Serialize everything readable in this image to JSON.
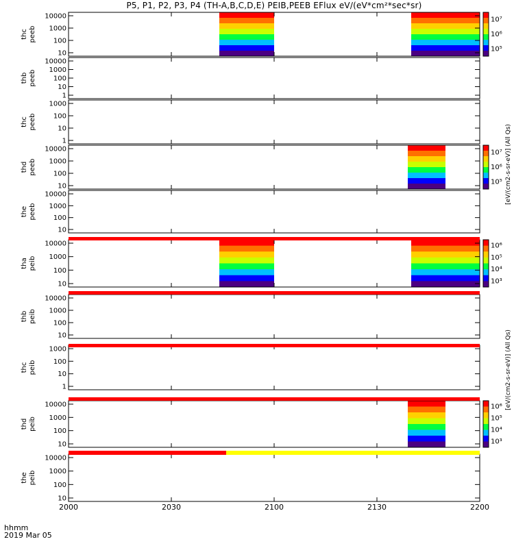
{
  "title": "P5, P1, P2, P3, P4 (TH-A,B,C,D,E) PEIB,PEEB EFlux eV/(eV*cm²*sec*sr)",
  "time_axis": {
    "ticks": [
      "2000",
      "2030",
      "2100",
      "2130",
      "2200"
    ],
    "tick_minutes": [
      0,
      30,
      60,
      90,
      120
    ],
    "range_minutes": [
      0,
      120
    ],
    "label": "hhmm",
    "date": "2019 Mar 05"
  },
  "colorbar_labels": {
    "electron": "[eV/(cm2-s-sr-eV)] (All Qs)",
    "ion": "[eV/(cm2-s-sr-eV)] (All Qs)"
  },
  "colors": {
    "spectrogram_scale": [
      "#4b0082",
      "#0000ff",
      "#00c0ff",
      "#00ff40",
      "#c8ff00",
      "#ffd000",
      "#ff7000",
      "#ff0000"
    ],
    "status_red": "#ff0000",
    "status_yellow": "#ffff00"
  },
  "chart_data": [
    {
      "type": "heatmap",
      "probe": "thc",
      "quantity": "peeb",
      "y_ticks": [
        "10000",
        "1000",
        "100",
        "10"
      ],
      "yscale": "log",
      "colorbar": {
        "ticks": [
          "10⁷",
          "10⁶",
          "10⁵"
        ],
        "scale": "log"
      },
      "data_intervals_minutes": [
        [
          44,
          60
        ],
        [
          100,
          120
        ]
      ]
    },
    {
      "type": "heatmap",
      "probe": "thb",
      "quantity": "peeb",
      "y_ticks": [
        "10000",
        "1000",
        "100",
        "10",
        "1"
      ],
      "yscale": "log",
      "data_intervals_minutes": []
    },
    {
      "type": "heatmap",
      "probe": "thc",
      "quantity": "peeb",
      "y_ticks": [
        "1000",
        "100",
        "10",
        "1"
      ],
      "yscale": "log",
      "data_intervals_minutes": []
    },
    {
      "type": "heatmap",
      "probe": "thd",
      "quantity": "peeb",
      "y_ticks": [
        "10000",
        "1000",
        "100",
        "10"
      ],
      "yscale": "log",
      "colorbar": {
        "ticks": [
          "10⁷",
          "10⁶",
          "10⁵"
        ],
        "scale": "log"
      },
      "data_intervals_minutes": [
        [
          99,
          110
        ]
      ]
    },
    {
      "type": "heatmap",
      "probe": "the",
      "quantity": "peeb",
      "y_ticks": [
        "10000",
        "1000",
        "100",
        "10"
      ],
      "yscale": "log",
      "data_intervals_minutes": []
    },
    {
      "type": "heatmap",
      "probe": "tha",
      "quantity": "peib",
      "y_ticks": [
        "10000",
        "1000",
        "100",
        "10"
      ],
      "yscale": "log",
      "colorbar": {
        "ticks": [
          "10⁶",
          "10⁵",
          "10⁴",
          "10³"
        ],
        "scale": "log"
      },
      "data_intervals_minutes": [
        [
          44,
          60
        ],
        [
          100,
          120
        ]
      ]
    },
    {
      "type": "heatmap",
      "probe": "thb",
      "quantity": "peib",
      "y_ticks": [
        "10000",
        "1000",
        "100",
        "10"
      ],
      "yscale": "log",
      "data_intervals_minutes": []
    },
    {
      "type": "heatmap",
      "probe": "thc",
      "quantity": "peib",
      "y_ticks": [
        "1000",
        "100",
        "10",
        "1"
      ],
      "yscale": "log",
      "data_intervals_minutes": []
    },
    {
      "type": "heatmap",
      "probe": "thd",
      "quantity": "peib",
      "y_ticks": [
        "10000",
        "1000",
        "100",
        "10"
      ],
      "yscale": "log",
      "colorbar": {
        "ticks": [
          "10⁶",
          "10⁵",
          "10⁴",
          "10³"
        ],
        "scale": "log"
      },
      "data_intervals_minutes": [
        [
          99,
          110
        ]
      ]
    },
    {
      "type": "heatmap",
      "probe": "the",
      "quantity": "peib",
      "y_ticks": [
        "10000",
        "1000",
        "100",
        "10"
      ],
      "yscale": "log",
      "data_intervals_minutes": []
    }
  ]
}
